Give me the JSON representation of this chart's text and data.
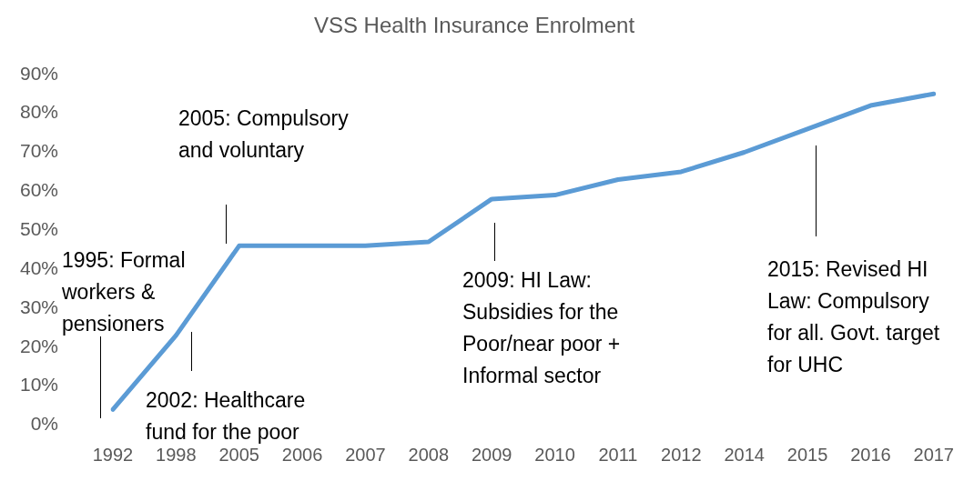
{
  "chart_data": {
    "type": "line",
    "title": "VSS Health Insurance Enrolment",
    "categories": [
      "1992",
      "1998",
      "2005",
      "2006",
      "2007",
      "2008",
      "2009",
      "2010",
      "2011",
      "2012",
      "2014",
      "2015",
      "2016",
      "2017"
    ],
    "series": [
      {
        "color": "#5b9bd5",
        "values": [
          4,
          23,
          46,
          46,
          46,
          47,
          58,
          59,
          63,
          65,
          70,
          76,
          82,
          85
        ]
      }
    ],
    "ylim": [
      0,
      90
    ],
    "yticks": [
      {
        "value": 0,
        "label": "0%"
      },
      {
        "value": 10,
        "label": "10%"
      },
      {
        "value": 20,
        "label": "20%"
      },
      {
        "value": 30,
        "label": "30%"
      },
      {
        "value": 40,
        "label": "40%"
      },
      {
        "value": 50,
        "label": "50%"
      },
      {
        "value": 60,
        "label": "60%"
      },
      {
        "value": 70,
        "label": "70%"
      },
      {
        "value": 80,
        "label": "80%"
      },
      {
        "value": 90,
        "label": "90%"
      }
    ],
    "grid": false,
    "legend": false,
    "marker": "none",
    "line_style": "solid",
    "annotations": [
      "1995: Formal\nworkers &\npensioners",
      "2002: Healthcare\nfund for the poor",
      "2005: Compulsory\nand voluntary",
      "2009: HI Law:\nSubsidies for the\nPoor/near poor +\nInformal sector",
      "2015: Revised HI\nLaw: Compulsory\nfor all. Govt. target\nfor UHC"
    ]
  }
}
